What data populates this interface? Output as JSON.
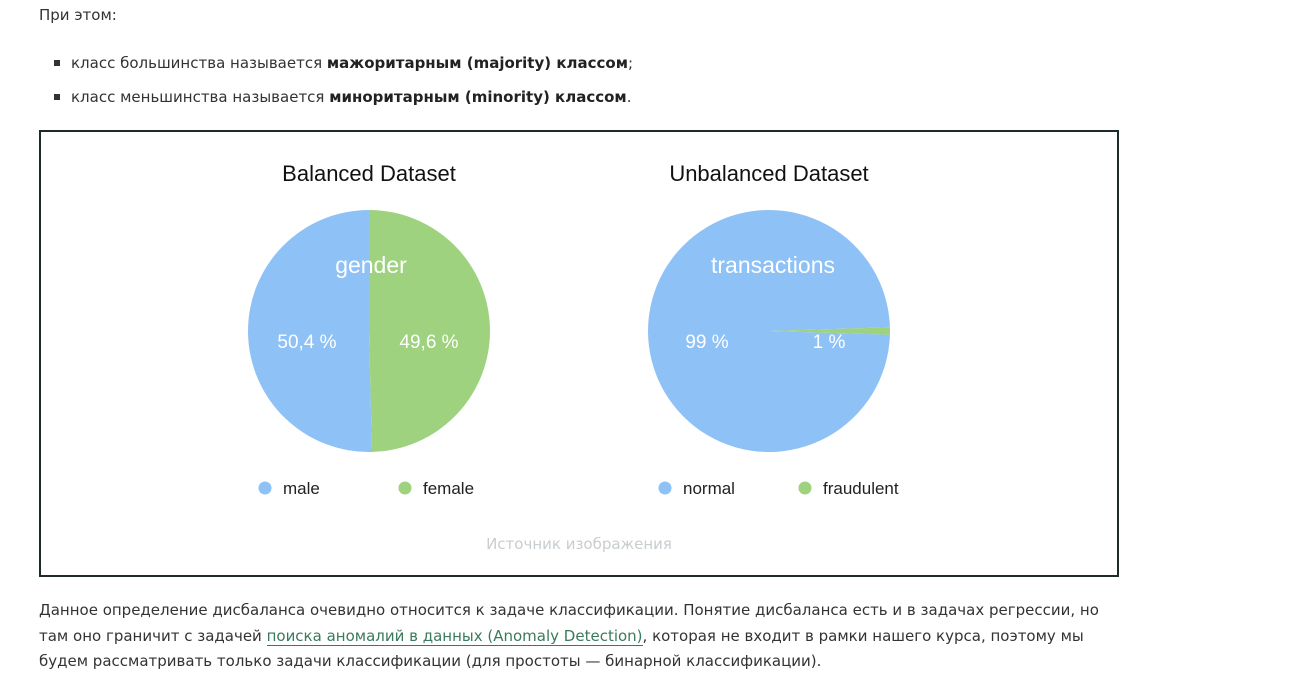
{
  "intro": "При этом:",
  "bullets": [
    {
      "prefix": "класс большинства называется ",
      "bold": "мажоритарным (majority) классом",
      "suffix": ";"
    },
    {
      "prefix": "класс меньшинства называется ",
      "bold": "миноритарным (minority) классом",
      "suffix": "."
    }
  ],
  "colors": {
    "blue": "#8ec1f5",
    "green": "#9ed27f",
    "link": "#3a7a5c"
  },
  "chart_data": [
    {
      "type": "pie",
      "title": "Balanced Dataset",
      "center_label": "gender",
      "slices": [
        {
          "name": "male",
          "value": 50.4,
          "label": "50,4 %",
          "color": "#8ec1f5"
        },
        {
          "name": "female",
          "value": 49.6,
          "label": "49,6 %",
          "color": "#9ed27f"
        }
      ],
      "legend": "bottom"
    },
    {
      "type": "pie",
      "title": "Unbalanced Dataset",
      "center_label": "transactions",
      "slices": [
        {
          "name": "normal",
          "value": 99,
          "label": "99 %",
          "color": "#8ec1f5"
        },
        {
          "name": "fraudulent",
          "value": 1,
          "label": "1 %",
          "color": "#9ed27f"
        }
      ],
      "legend": "bottom"
    }
  ],
  "caption": "Источник изображения",
  "paragraph": {
    "before": "Данное определение дисбаланса очевидно относится к задаче классификации. Понятие дисбаланса есть и в задачах регрессии, но там оно граничит с задачей ",
    "link": "поиска аномалий в данных (Anomaly Detection)",
    "after": ", которая не входит в рамки нашего курса, поэтому мы будем рассматривать только задачи классификации (для простоты — бинарной классификации)."
  }
}
